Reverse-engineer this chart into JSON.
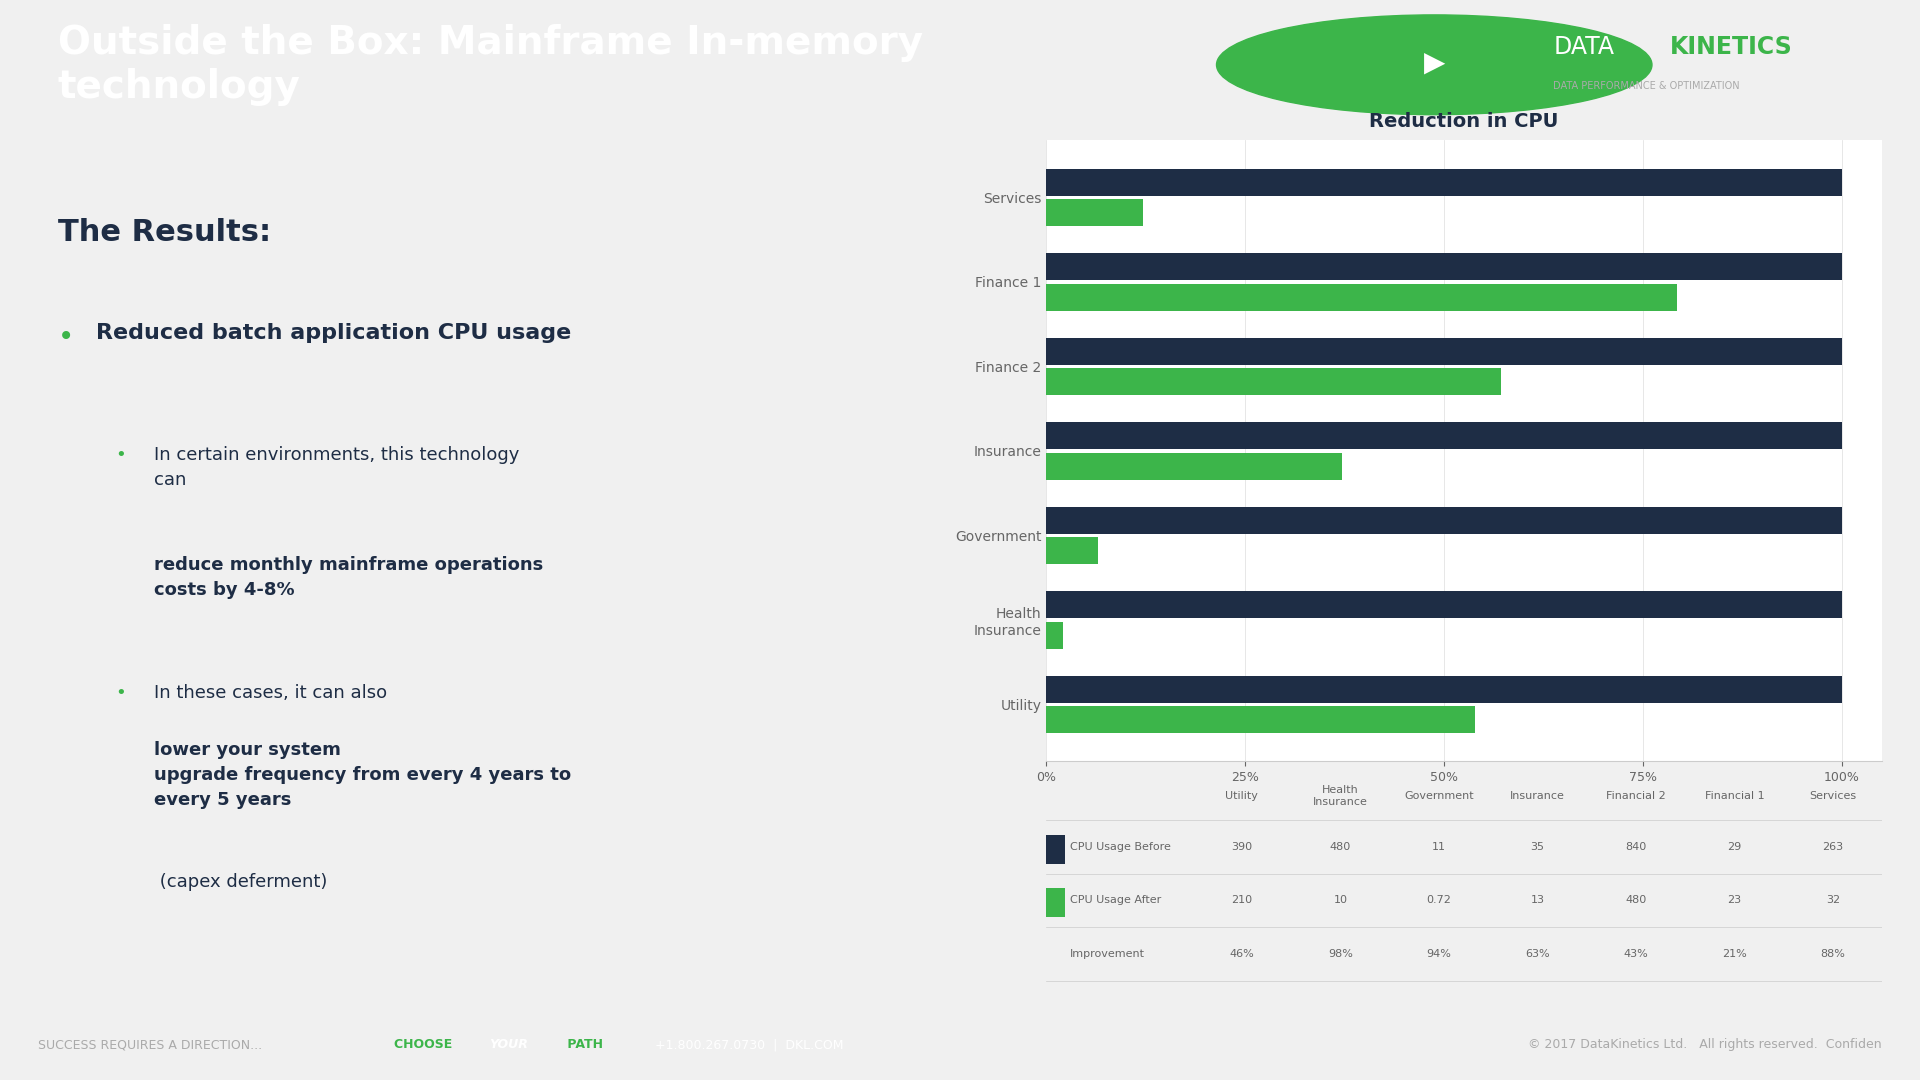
{
  "title": "Reduction in CPU",
  "categories": [
    "Utility",
    "Health\nInsurance",
    "Government",
    "Insurance",
    "Finance 2",
    "Finance 1",
    "Services"
  ],
  "cpu_before": [
    390,
    480,
    11,
    35,
    840,
    29,
    263
  ],
  "cpu_after": [
    210,
    10,
    0.72,
    13,
    480,
    23,
    32
  ],
  "improvement": [
    "46%",
    "98%",
    "94%",
    "63%",
    "43%",
    "21%",
    "88%"
  ],
  "before_color": "#1e2d45",
  "after_color": "#3cb54a",
  "header_bg": "#1e2d45",
  "footer_bg": "#1e2d45",
  "slide_bg": "#f0f0f0",
  "chart_bg": "#ffffff",
  "title_text": "Outside the Box: Mainframe In-memory\ntechnology",
  "results_title": "The Results:",
  "bullet1": "Reduced batch application CPU usage",
  "sub_bullet1_plain": "In certain environments, this technology\ncan ",
  "sub_bullet1_bold": "reduce monthly mainframe operations\ncosts by 4-8%",
  "sub_bullet2_plain": "In these cases, it can also ",
  "sub_bullet2_bold": "lower your system\nupgrade frequency from every 4 years to\nevery 5 years",
  "sub_bullet2_end": " (capex deferment)",
  "footer_right": "© 2017 DataKinetics Ltd.   All rights reserved.  Confiden",
  "table_headers": [
    "",
    "Utility",
    "Health\nInsurance",
    "Government",
    "Insurance",
    "Financial 2",
    "Financial 1",
    "Services"
  ],
  "table_row1_label": "CPU Usage Before",
  "table_row2_label": "CPU Usage After",
  "table_row3_label": "Improvement",
  "table_row1_vals": [
    "390",
    "480",
    "11",
    "35",
    "840",
    "29",
    "263"
  ],
  "table_row2_vals": [
    "210",
    "10",
    "0.72",
    "13",
    "480",
    "23",
    "32"
  ],
  "table_row3_vals": [
    "46%",
    "98%",
    "94%",
    "63%",
    "43%",
    "21%",
    "88%"
  ]
}
